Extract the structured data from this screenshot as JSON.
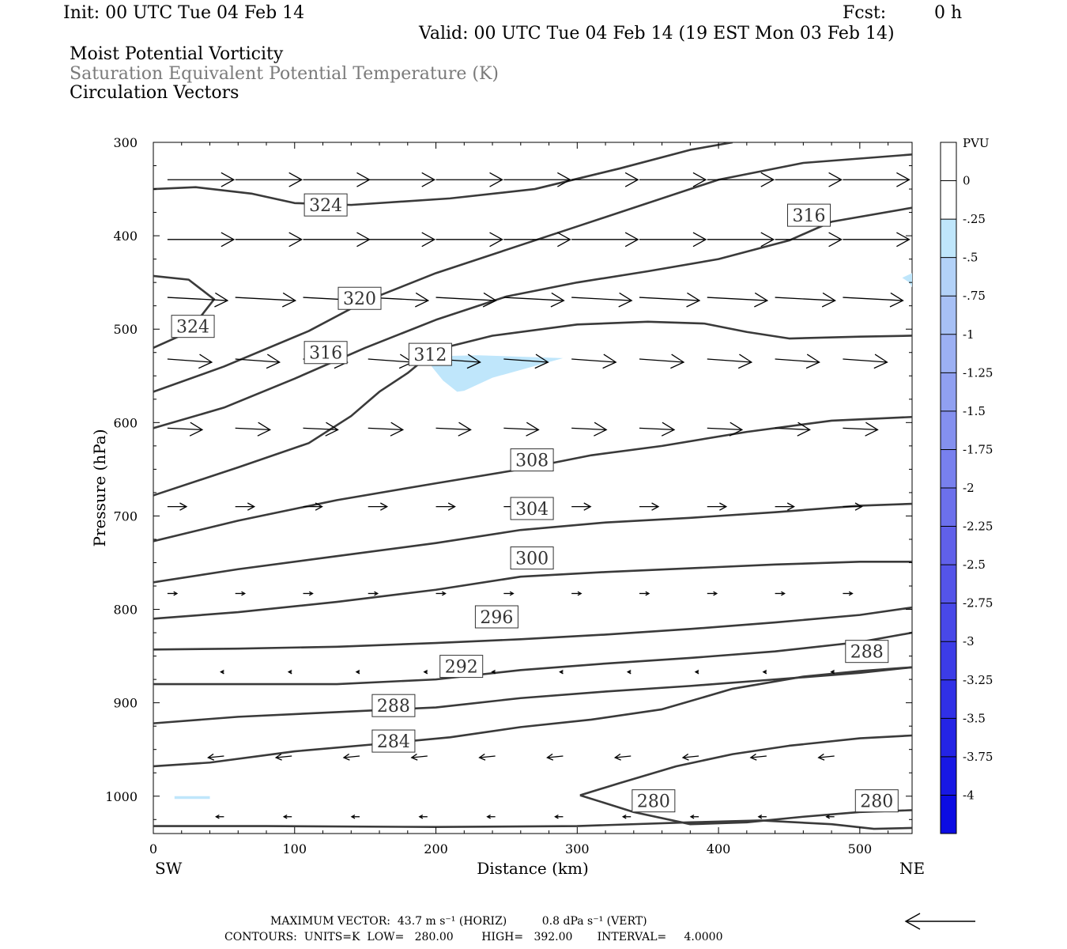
{
  "header": {
    "init": "Init: 00 UTC Tue 04 Feb 14",
    "fcst_label": "Fcst:",
    "fcst_value": "0 h",
    "valid": "Valid: 00 UTC Tue 04 Feb 14 (19 EST Mon 03 Feb 14)"
  },
  "fields": {
    "mpv": "Moist Potential Vorticity",
    "thetae": "Saturation Equivalent Potential Temperature (K)",
    "vectors": "Circulation Vectors"
  },
  "footer": {
    "max_vector": "MAXIMUM VECTOR:  43.7 m s⁻¹ (HORIZ)          0.8 dPa s⁻¹ (VERT)",
    "contours": "CONTOURS:  UNITS=K  LOW=   280.00        HIGH=   392.00       INTERVAL=     4.0000"
  },
  "colors": {
    "contour": "#3a3a3a",
    "shade_light": "#bfe6fb",
    "axis": "#000000"
  },
  "chart_data": {
    "type": "line",
    "xlabel": "Distance (km)",
    "ylabel": "Pressure (hPa)",
    "x_ticks": [
      0,
      100,
      200,
      300,
      400,
      500
    ],
    "y_ticks": [
      300,
      400,
      500,
      600,
      700,
      800,
      900,
      1000
    ],
    "xlim": [
      0,
      537
    ],
    "ylim": [
      1040,
      300
    ],
    "left_end": "SW",
    "right_end": "NE",
    "colorbar": {
      "unit": "PVU",
      "labels": [
        "0",
        "-.25",
        "-.5",
        "-.75",
        "-1",
        "-1.25",
        "-1.5",
        "-1.75",
        "-2",
        "-2.25",
        "-2.5",
        "-2.75",
        "-3",
        "-3.25",
        "-3.5",
        "-3.75",
        "-4"
      ],
      "colors": [
        "#ffffff",
        "#ffffff",
        "#bfe6fb",
        "#b3d2f8",
        "#a7c0f5",
        "#9cb0f3",
        "#90a0f1",
        "#8490ef",
        "#7880ee",
        "#6c70ec",
        "#6060ea",
        "#5454e9",
        "#4848e8",
        "#3c3ce7",
        "#3030e6",
        "#2424e5",
        "#1818e4",
        "#0c0ce3"
      ]
    },
    "contours": [
      {
        "label": "324",
        "points": [
          [
            0,
            350
          ],
          [
            30,
            348
          ],
          [
            70,
            355
          ],
          [
            100,
            365
          ],
          [
            140,
            367
          ],
          [
            210,
            360
          ],
          [
            270,
            350
          ],
          [
            330,
            328
          ],
          [
            380,
            308
          ],
          [
            410,
            300
          ]
        ]
      },
      {
        "label": "324",
        "points": [
          [
            0,
            520
          ],
          [
            25,
            503
          ],
          [
            43,
            468
          ],
          [
            25,
            447
          ],
          [
            0,
            443
          ]
        ]
      },
      {
        "label": "320",
        "points": [
          [
            0,
            567
          ],
          [
            50,
            540
          ],
          [
            110,
            502
          ],
          [
            150,
            470
          ],
          [
            200,
            440
          ],
          [
            250,
            415
          ],
          [
            300,
            390
          ],
          [
            350,
            365
          ],
          [
            400,
            340
          ],
          [
            460,
            322
          ],
          [
            537,
            313
          ]
        ]
      },
      {
        "label": "316",
        "points": [
          [
            0,
            606
          ],
          [
            50,
            584
          ],
          [
            100,
            553
          ],
          [
            150,
            520
          ],
          [
            200,
            490
          ],
          [
            250,
            465
          ],
          [
            300,
            450
          ],
          [
            350,
            438
          ],
          [
            400,
            425
          ],
          [
            450,
            405
          ],
          [
            480,
            385
          ],
          [
            537,
            370
          ]
        ]
      },
      {
        "label": "312",
        "points": [
          [
            0,
            678
          ],
          [
            60,
            648
          ],
          [
            110,
            622
          ],
          [
            140,
            593
          ],
          [
            160,
            567
          ],
          [
            180,
            547
          ],
          [
            200,
            522
          ],
          [
            240,
            507
          ],
          [
            300,
            495
          ],
          [
            350,
            492
          ],
          [
            390,
            494
          ],
          [
            420,
            503
          ],
          [
            450,
            510
          ],
          [
            500,
            508
          ],
          [
            537,
            507
          ]
        ]
      },
      {
        "label": "308",
        "points": [
          [
            0,
            727
          ],
          [
            60,
            705
          ],
          [
            130,
            683
          ],
          [
            200,
            665
          ],
          [
            260,
            650
          ],
          [
            310,
            635
          ],
          [
            360,
            625
          ],
          [
            420,
            610
          ],
          [
            480,
            598
          ],
          [
            537,
            594
          ]
        ]
      },
      {
        "label": "304",
        "points": [
          [
            0,
            771
          ],
          [
            60,
            757
          ],
          [
            130,
            743
          ],
          [
            200,
            729
          ],
          [
            260,
            715
          ],
          [
            320,
            707
          ],
          [
            380,
            702
          ],
          [
            440,
            696
          ],
          [
            500,
            689
          ],
          [
            537,
            687
          ]
        ]
      },
      {
        "label": "300",
        "points": [
          [
            0,
            810
          ],
          [
            60,
            803
          ],
          [
            130,
            792
          ],
          [
            200,
            779
          ],
          [
            260,
            765
          ],
          [
            320,
            760
          ],
          [
            380,
            756
          ],
          [
            440,
            752
          ],
          [
            500,
            749
          ],
          [
            537,
            749
          ]
        ]
      },
      {
        "label": "296",
        "points": [
          [
            0,
            843
          ],
          [
            60,
            842
          ],
          [
            130,
            840
          ],
          [
            200,
            836
          ],
          [
            260,
            832
          ],
          [
            320,
            827
          ],
          [
            380,
            821
          ],
          [
            440,
            814
          ],
          [
            500,
            806
          ],
          [
            537,
            798
          ]
        ]
      },
      {
        "label": "292",
        "points": [
          [
            0,
            880
          ],
          [
            60,
            880
          ],
          [
            130,
            880
          ],
          [
            200,
            875
          ],
          [
            260,
            865
          ],
          [
            320,
            858
          ],
          [
            380,
            852
          ],
          [
            440,
            845
          ],
          [
            500,
            835
          ],
          [
            537,
            825
          ]
        ]
      },
      {
        "label": "288",
        "points": [
          [
            0,
            922
          ],
          [
            60,
            915
          ],
          [
            130,
            910
          ],
          [
            200,
            905
          ],
          [
            260,
            895
          ],
          [
            320,
            888
          ],
          [
            380,
            882
          ],
          [
            440,
            875
          ],
          [
            500,
            868
          ],
          [
            537,
            862
          ]
        ]
      },
      {
        "label": "284",
        "points": [
          [
            0,
            968
          ],
          [
            40,
            964
          ],
          [
            100,
            952
          ],
          [
            160,
            944
          ],
          [
            210,
            937
          ],
          [
            260,
            926
          ],
          [
            310,
            918
          ],
          [
            360,
            907
          ],
          [
            410,
            885
          ],
          [
            460,
            872
          ],
          [
            500,
            866
          ],
          [
            537,
            862
          ]
        ]
      },
      {
        "label": "280",
        "points": [
          [
            302,
            999
          ],
          [
            330,
            986
          ],
          [
            370,
            968
          ],
          [
            410,
            955
          ],
          [
            450,
            946
          ],
          [
            500,
            938
          ],
          [
            537,
            935
          ]
        ]
      },
      {
        "label": "280",
        "points": [
          [
            302,
            999
          ],
          [
            340,
            1017
          ],
          [
            380,
            1030
          ],
          [
            420,
            1028
          ],
          [
            460,
            1022
          ],
          [
            500,
            1017
          ],
          [
            537,
            1015
          ]
        ]
      },
      {
        "label": "",
        "points": [
          [
            0,
            1032
          ],
          [
            80,
            1032
          ],
          [
            200,
            1033
          ],
          [
            300,
            1032
          ],
          [
            380,
            1028
          ],
          [
            430,
            1026
          ],
          [
            480,
            1030
          ],
          [
            510,
            1035
          ],
          [
            537,
            1034
          ]
        ]
      }
    ],
    "contour_labels": [
      {
        "text": "324",
        "x": 122,
        "p": 367
      },
      {
        "text": "324",
        "x": 28,
        "p": 497
      },
      {
        "text": "320",
        "x": 146,
        "p": 467
      },
      {
        "text": "316",
        "x": 122,
        "p": 525
      },
      {
        "text": "316",
        "x": 464,
        "p": 378
      },
      {
        "text": "312",
        "x": 196,
        "p": 527
      },
      {
        "text": "308",
        "x": 268,
        "p": 640
      },
      {
        "text": "304",
        "x": 268,
        "p": 692
      },
      {
        "text": "300",
        "x": 268,
        "p": 745
      },
      {
        "text": "296",
        "x": 243,
        "p": 808
      },
      {
        "text": "292",
        "x": 218,
        "p": 861
      },
      {
        "text": "288",
        "x": 170,
        "p": 903
      },
      {
        "text": "288",
        "x": 505,
        "p": 845
      },
      {
        "text": "284",
        "x": 170,
        "p": 941
      },
      {
        "text": "280",
        "x": 354,
        "p": 1005
      },
      {
        "text": "280",
        "x": 512,
        "p": 1005
      }
    ],
    "shading": [
      {
        "points": [
          [
            197,
            529
          ],
          [
            230,
            528
          ],
          [
            290,
            531
          ],
          [
            240,
            552
          ],
          [
            220,
            566
          ],
          [
            215,
            567
          ],
          [
            205,
            555
          ],
          [
            197,
            540
          ]
        ]
      },
      {
        "points": [
          [
            15,
            1000
          ],
          [
            40,
            1000
          ],
          [
            40,
            1003
          ],
          [
            15,
            1003
          ]
        ]
      },
      {
        "points": [
          [
            530,
            445
          ],
          [
            537,
            440
          ],
          [
            537,
            455
          ],
          [
            535,
            450
          ]
        ]
      }
    ],
    "vector_rows": [
      {
        "p": 340,
        "xs": [
          10,
          58,
          106,
          152,
          200,
          248,
          296,
          344,
          392,
          440,
          488
        ],
        "u": 42,
        "w": 0
      },
      {
        "p": 404,
        "xs": [
          10,
          58,
          106,
          152,
          200,
          248,
          296,
          344,
          392,
          440,
          488
        ],
        "u": 42,
        "w": 0
      },
      {
        "p": 466,
        "xs": [
          10,
          58,
          106,
          152,
          200,
          248,
          296,
          344,
          392,
          440,
          488
        ],
        "u": 38,
        "w": -2
      },
      {
        "p": 532,
        "xs": [
          10,
          58,
          106,
          152,
          200,
          248,
          296,
          344,
          392,
          440,
          488
        ],
        "u": 28,
        "w": -2
      },
      {
        "p": 606,
        "xs": [
          10,
          58,
          106,
          152,
          200,
          248,
          296,
          344,
          392,
          440,
          488
        ],
        "u": 22,
        "w": -1
      },
      {
        "p": 690,
        "xs": [
          10,
          58,
          106,
          152,
          200,
          248,
          296,
          344,
          392,
          440,
          488
        ],
        "u": 12,
        "w": 0
      },
      {
        "p": 783,
        "xs": [
          10,
          58,
          106,
          152,
          200,
          248,
          296,
          344,
          392,
          440,
          488
        ],
        "u": 6,
        "w": 0
      },
      {
        "p": 867,
        "xs": [
          50,
          98,
          146,
          194,
          242,
          290,
          338,
          386,
          434,
          482
        ],
        "u": -2,
        "w": 0
      },
      {
        "p": 957,
        "xs": [
          50,
          98,
          146,
          194,
          242,
          290,
          338,
          386,
          434,
          482
        ],
        "u": -10,
        "w": -1
      },
      {
        "p": 1022,
        "xs": [
          50,
          98,
          146,
          194,
          242,
          290,
          338,
          386,
          434,
          482
        ],
        "u": -5,
        "w": 0
      }
    ],
    "reference_vector": {
      "u": -43.7
    }
  }
}
